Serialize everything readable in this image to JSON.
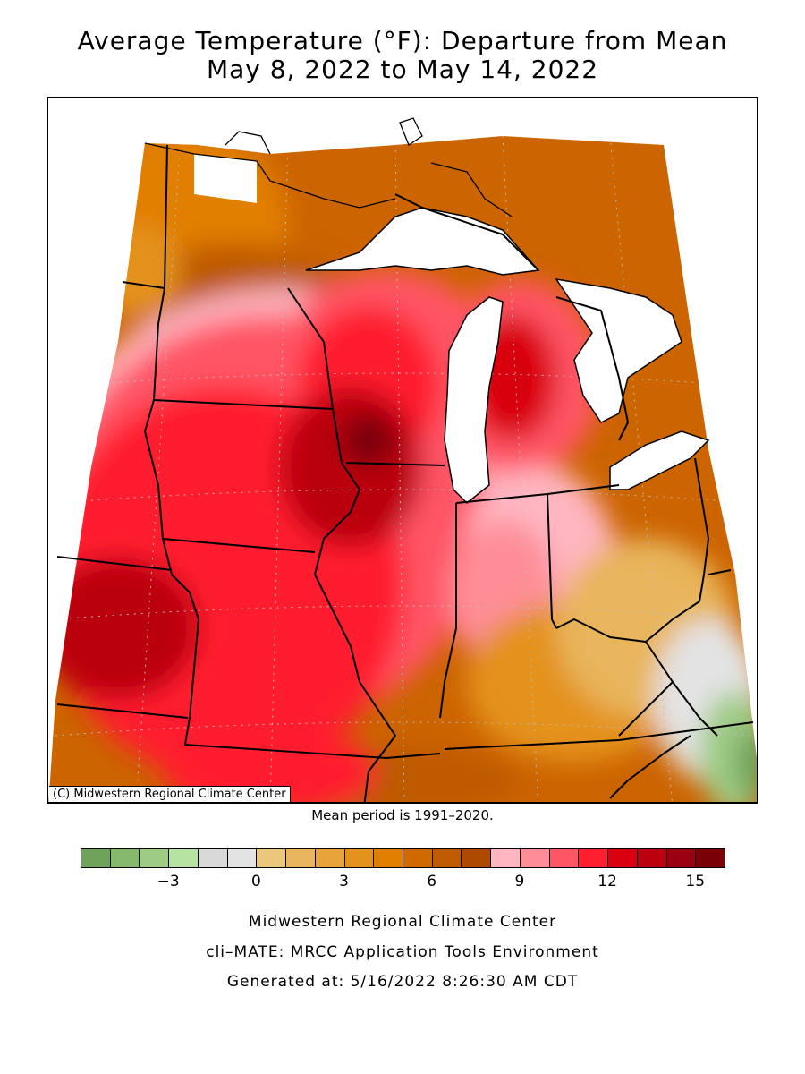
{
  "title_line1": "Average Temperature (°F): Departure from Mean",
  "title_line2": "May 8, 2022 to May 14, 2022",
  "copyright": "(C) Midwestern Regional Climate Center",
  "mean_period": "Mean period is 1991–2020.",
  "legend": {
    "colors": [
      "#6fa35a",
      "#86b96e",
      "#9ecc85",
      "#b6e3a2",
      "#d9d9d9",
      "#e3e3e3",
      "#ebc77c",
      "#e8b55c",
      "#e6a43b",
      "#e4921e",
      "#e17f00",
      "#d06a00",
      "#be5a00",
      "#ae4a00",
      "#ffb6c1",
      "#ff8d97",
      "#ff5565",
      "#ff1f2f",
      "#d90010",
      "#bb0010",
      "#9a0010",
      "#7a0008"
    ],
    "ticks": [
      {
        "label": "−3",
        "index": 3
      },
      {
        "label": "0",
        "index": 6
      },
      {
        "label": "3",
        "index": 9
      },
      {
        "label": "6",
        "index": 12
      },
      {
        "label": "9",
        "index": 15
      },
      {
        "label": "12",
        "index": 18
      },
      {
        "label": "15",
        "index": 21
      }
    ]
  },
  "footer_line1": "Midwestern Regional Climate Center",
  "footer_line2": "cli–MATE: MRCC Application Tools Environment",
  "footer_line3": "Generated at: 5/16/2022 8:26:30 AM CDT"
}
